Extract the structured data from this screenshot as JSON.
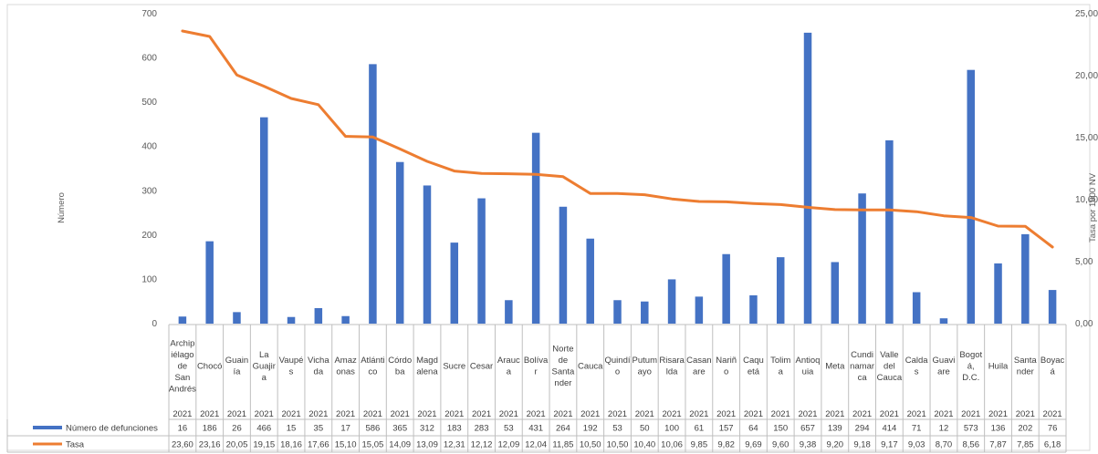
{
  "chart_data": {
    "type": "bar",
    "year": "2021",
    "categories": [
      [
        "Archip",
        "iélago",
        "de",
        "San",
        "Andrés"
      ],
      [
        "Chocó"
      ],
      [
        "Guain",
        "ía"
      ],
      [
        "La",
        "Guajir",
        "a"
      ],
      [
        "Vaupé",
        "s"
      ],
      [
        "Vicha",
        "da"
      ],
      [
        "Amaz",
        "onas"
      ],
      [
        "Atlánti",
        "co"
      ],
      [
        "Córdo",
        "ba"
      ],
      [
        "Magd",
        "alena"
      ],
      [
        "Sucre"
      ],
      [
        "Cesar"
      ],
      [
        "Arauc",
        "a"
      ],
      [
        "Bolíva",
        "r"
      ],
      [
        "Norte",
        "de",
        "Santa",
        "nder"
      ],
      [
        "Cauca"
      ],
      [
        "Quindí",
        "o"
      ],
      [
        "Putum",
        "ayo"
      ],
      [
        "Risara",
        "lda"
      ],
      [
        "Casan",
        "are"
      ],
      [
        "Nariñ",
        "o"
      ],
      [
        "Caqu",
        "etá"
      ],
      [
        "Tolim",
        "a"
      ],
      [
        "Antioq",
        "uia"
      ],
      [
        "Meta"
      ],
      [
        "Cundi",
        "namar",
        "ca"
      ],
      [
        "Valle",
        "del",
        "Cauca"
      ],
      [
        "Calda",
        "s"
      ],
      [
        "Guavi",
        "are"
      ],
      [
        "Bogot",
        "á,",
        "D.C."
      ],
      [
        "Huila"
      ],
      [
        "Santa",
        "nder"
      ],
      [
        "Boyac",
        "á"
      ]
    ],
    "series": [
      {
        "name": "Número de defunciones",
        "type": "bar",
        "axis": "left",
        "color": "#4472C4",
        "values": [
          16,
          186,
          26,
          466,
          15,
          35,
          17,
          586,
          365,
          312,
          183,
          283,
          53,
          431,
          264,
          192,
          53,
          50,
          100,
          61,
          157,
          64,
          150,
          657,
          139,
          294,
          414,
          71,
          12,
          573,
          136,
          202,
          76
        ]
      },
      {
        "name": "Tasa",
        "type": "line",
        "axis": "right",
        "color": "#ED7D31",
        "values": [
          23.6,
          23.16,
          20.05,
          19.15,
          18.16,
          17.66,
          15.1,
          15.05,
          14.09,
          13.09,
          12.31,
          12.12,
          12.09,
          12.04,
          11.85,
          10.5,
          10.5,
          10.4,
          10.06,
          9.85,
          9.82,
          9.69,
          9.6,
          9.38,
          9.2,
          9.18,
          9.17,
          9.03,
          8.7,
          8.56,
          7.87,
          7.85,
          6.18
        ]
      }
    ],
    "table_labels": {
      "defunciones": [
        "16",
        "186",
        "26",
        "466",
        "15",
        "35",
        "17",
        "586",
        "365",
        "312",
        "183",
        "283",
        "53",
        "431",
        "264",
        "192",
        "53",
        "50",
        "100",
        "61",
        "157",
        "64",
        "150",
        "657",
        "139",
        "294",
        "414",
        "71",
        "12",
        "573",
        "136",
        "202",
        "76"
      ],
      "tasa": [
        "23,60",
        "23,16",
        "20,05",
        "19,15",
        "18,16",
        "17,66",
        "15,10",
        "15,05",
        "14,09",
        "13,09",
        "12,31",
        "12,12",
        "12,09",
        "12,04",
        "11,85",
        "10,50",
        "10,50",
        "10,40",
        "10,06",
        "9,85",
        "9,82",
        "9,69",
        "9,60",
        "9,38",
        "9,20",
        "9,18",
        "9,17",
        "9,03",
        "8,70",
        "8,56",
        "7,87",
        "7,85",
        "6,18"
      ]
    },
    "ylabel_left": "Número",
    "ylabel_right": "Tasa por 1000 NV",
    "ylim_left": [
      0,
      700
    ],
    "yticks_left": [
      "0",
      "100",
      "200",
      "300",
      "400",
      "500",
      "600",
      "700"
    ],
    "ylim_right": [
      0,
      25
    ],
    "yticks_right": [
      "0,00",
      "5,00",
      "10,00",
      "15,00",
      "20,00",
      "25,00"
    ],
    "grid": false,
    "legend": "data-table"
  }
}
